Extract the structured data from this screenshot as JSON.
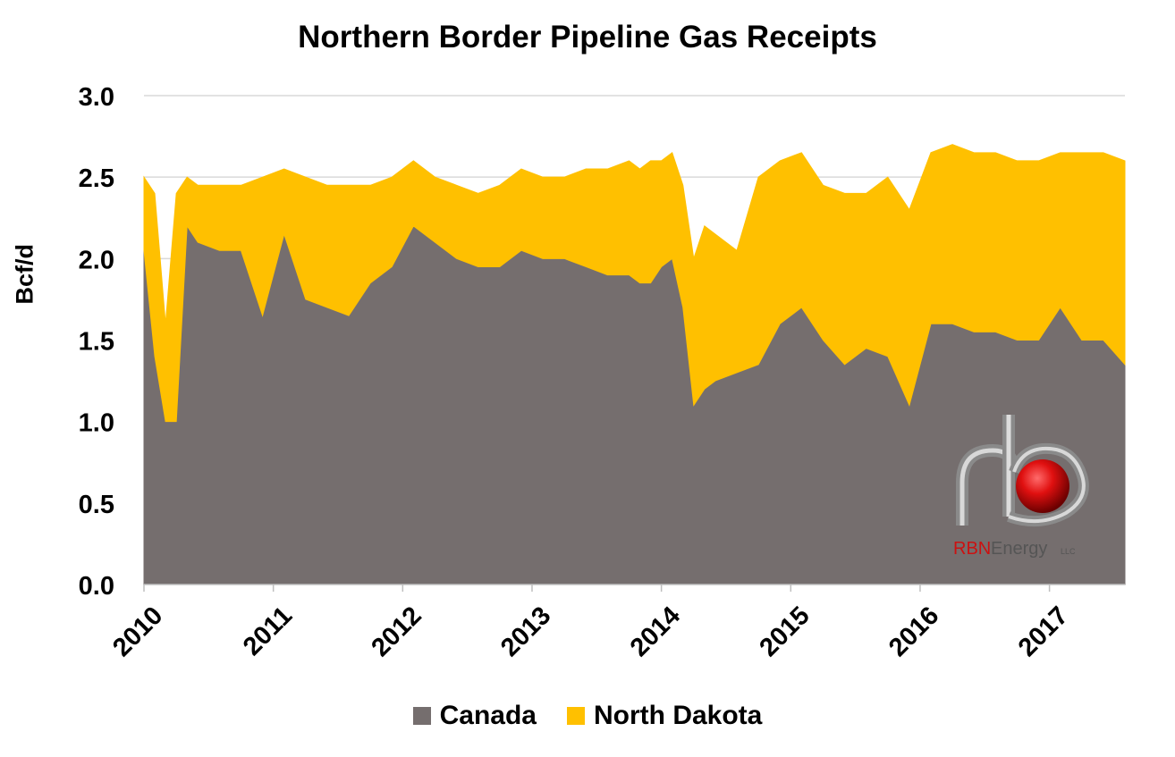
{
  "chart_data": {
    "type": "area",
    "stacked": true,
    "title": "Northern Border Pipeline Gas Receipts",
    "xlabel": "",
    "ylabel": "Bcf/d",
    "ylim": [
      0,
      3.0
    ],
    "yticks": [
      "0.0",
      "0.5",
      "1.0",
      "1.5",
      "2.0",
      "2.5",
      "3.0"
    ],
    "xlim": [
      "2010-01",
      "2017-08"
    ],
    "xticks": [
      "2010",
      "2011",
      "2012",
      "2013",
      "2014",
      "2015",
      "2016",
      "2017"
    ],
    "grid": "horizontal",
    "legend_position": "bottom",
    "x": [
      "2010-01",
      "2010-02",
      "2010-03",
      "2010-04",
      "2010-05",
      "2010-06",
      "2010-08",
      "2010-10",
      "2010-12",
      "2011-02",
      "2011-04",
      "2011-06",
      "2011-08",
      "2011-10",
      "2011-12",
      "2012-02",
      "2012-04",
      "2012-06",
      "2012-08",
      "2012-10",
      "2012-12",
      "2013-02",
      "2013-04",
      "2013-06",
      "2013-08",
      "2013-10",
      "2013-11",
      "2013-12",
      "2014-01",
      "2014-02",
      "2014-03",
      "2014-04",
      "2014-05",
      "2014-06",
      "2014-08",
      "2014-10",
      "2014-12",
      "2015-02",
      "2015-04",
      "2015-06",
      "2015-08",
      "2015-10",
      "2015-12",
      "2016-02",
      "2016-04",
      "2016-06",
      "2016-08",
      "2016-10",
      "2016-12",
      "2017-02",
      "2017-04",
      "2017-06",
      "2017-08"
    ],
    "series": [
      {
        "name": "Canada",
        "color": "#756E6E",
        "values": [
          2.05,
          1.4,
          1.0,
          1.0,
          2.2,
          2.1,
          2.05,
          2.05,
          1.65,
          2.15,
          1.75,
          1.7,
          1.65,
          1.85,
          1.95,
          2.2,
          2.1,
          2.0,
          1.95,
          1.95,
          2.05,
          2.0,
          2.0,
          1.95,
          1.9,
          1.9,
          1.85,
          1.85,
          1.95,
          2.0,
          1.7,
          1.1,
          1.2,
          1.25,
          1.3,
          1.35,
          1.6,
          1.7,
          1.5,
          1.35,
          1.45,
          1.4,
          1.1,
          1.6,
          1.6,
          1.55,
          1.55,
          1.5,
          1.5,
          1.7,
          1.5,
          1.5,
          1.35
        ]
      },
      {
        "name": "North Dakota",
        "color": "#FFC000",
        "values": [
          0.45,
          1.0,
          0.6,
          1.4,
          0.3,
          0.35,
          0.4,
          0.4,
          0.85,
          0.4,
          0.75,
          0.75,
          0.8,
          0.6,
          0.55,
          0.4,
          0.4,
          0.45,
          0.45,
          0.5,
          0.5,
          0.5,
          0.5,
          0.6,
          0.65,
          0.7,
          0.7,
          0.75,
          0.65,
          0.65,
          0.75,
          0.9,
          1.0,
          0.9,
          0.75,
          1.15,
          1.0,
          0.95,
          0.95,
          1.05,
          0.95,
          1.1,
          1.2,
          1.05,
          1.1,
          1.1,
          1.1,
          1.1,
          1.1,
          0.95,
          1.15,
          1.15,
          1.25
        ]
      }
    ]
  },
  "legend": {
    "items": [
      {
        "label": "Canada",
        "color": "#756E6E"
      },
      {
        "label": "North Dakota",
        "color": "#FFC000"
      }
    ]
  },
  "logo": {
    "icon": "rbn-energy-logo",
    "text_brand": "RBN",
    "text_name": "Energy",
    "text_suffix": "LLC"
  }
}
